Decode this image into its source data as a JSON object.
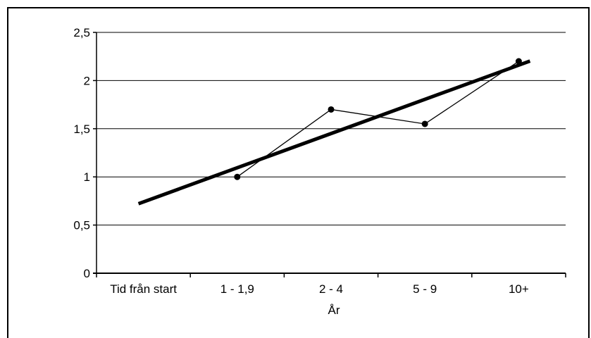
{
  "chart_data": {
    "type": "line",
    "categories": [
      "Tid från start",
      "1 - 1,9",
      "2 - 4",
      "5 - 9",
      "10+"
    ],
    "series": [
      {
        "values": [
          null,
          1.0,
          1.7,
          1.55,
          2.2
        ],
        "style": "thin line with dot markers"
      },
      {
        "values": [
          0.74,
          1.1,
          1.45,
          1.8,
          2.16
        ],
        "style": "thick trend line"
      }
    ],
    "title": "",
    "xlabel": "År",
    "ylabel": "",
    "ylim": [
      0,
      2.5
    ],
    "yticks": [
      "0",
      "0,5",
      "1",
      "1,5",
      "2",
      "2,5"
    ],
    "grid": true,
    "legend": "none",
    "colors": {
      "line": "#000000",
      "grid": "#000000",
      "background": "#ffffff"
    }
  }
}
